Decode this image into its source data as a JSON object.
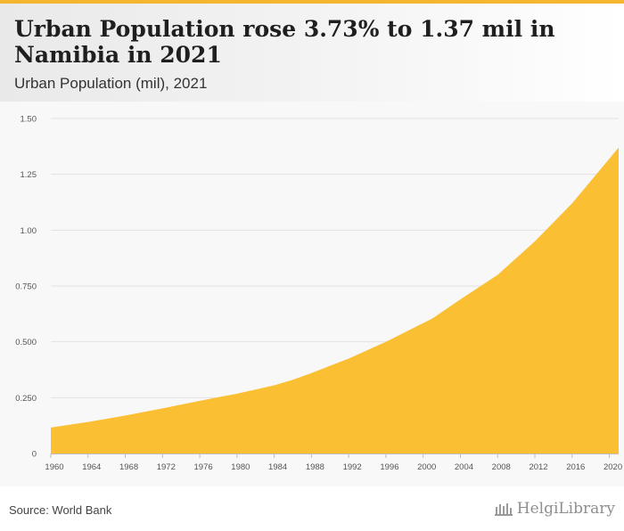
{
  "header": {
    "title": "Urban Population rose 3.73% to 1.37 mil in Namibia in 2021",
    "subtitle": "Urban Population (mil), 2021"
  },
  "colors": {
    "accent": "#f5b52e",
    "area": "#fbbf33",
    "grid": "#e2e2e2"
  },
  "chart_data": {
    "type": "area",
    "title": "Urban Population rose 3.73% to 1.37 mil in Namibia in 2021",
    "subtitle": "Urban Population (mil), 2021",
    "xlabel": "",
    "ylabel": "",
    "ylim": [
      0,
      1.5
    ],
    "xlim": [
      1960,
      2021
    ],
    "grid": true,
    "legend": "none",
    "y_ticks": [
      0,
      0.25,
      0.5,
      0.75,
      1.0,
      1.25,
      1.5
    ],
    "y_tick_labels": [
      "0",
      "0.250",
      "0.500",
      "0.750",
      "1.00",
      "1.25",
      "1.50"
    ],
    "x_ticks": [
      1960,
      1964,
      1968,
      1972,
      1976,
      1980,
      1984,
      1988,
      1992,
      1996,
      2000,
      2004,
      2008,
      2012,
      2016,
      2020
    ],
    "x_tick_labels": [
      "1960",
      "1964",
      "1968",
      "1972",
      "1976",
      "1980",
      "1984",
      "1988",
      "1992",
      "1996",
      "2000",
      "2004",
      "2008",
      "2012",
      "2016",
      "2020"
    ],
    "series": [
      {
        "name": "Urban Population (mil)",
        "x": [
          1960,
          1964,
          1968,
          1972,
          1976,
          1980,
          1984,
          1986,
          1988,
          1992,
          1996,
          2001,
          2004,
          2008,
          2012,
          2016,
          2020,
          2021
        ],
        "values": [
          0.116,
          0.141,
          0.17,
          0.202,
          0.236,
          0.268,
          0.305,
          0.33,
          0.36,
          0.425,
          0.5,
          0.605,
          0.69,
          0.8,
          0.95,
          1.12,
          1.32,
          1.37
        ]
      }
    ]
  },
  "footer": {
    "source": "Source: World Bank",
    "brand": "HelgiLibrary",
    "brand_icon": "library-columns-icon"
  }
}
